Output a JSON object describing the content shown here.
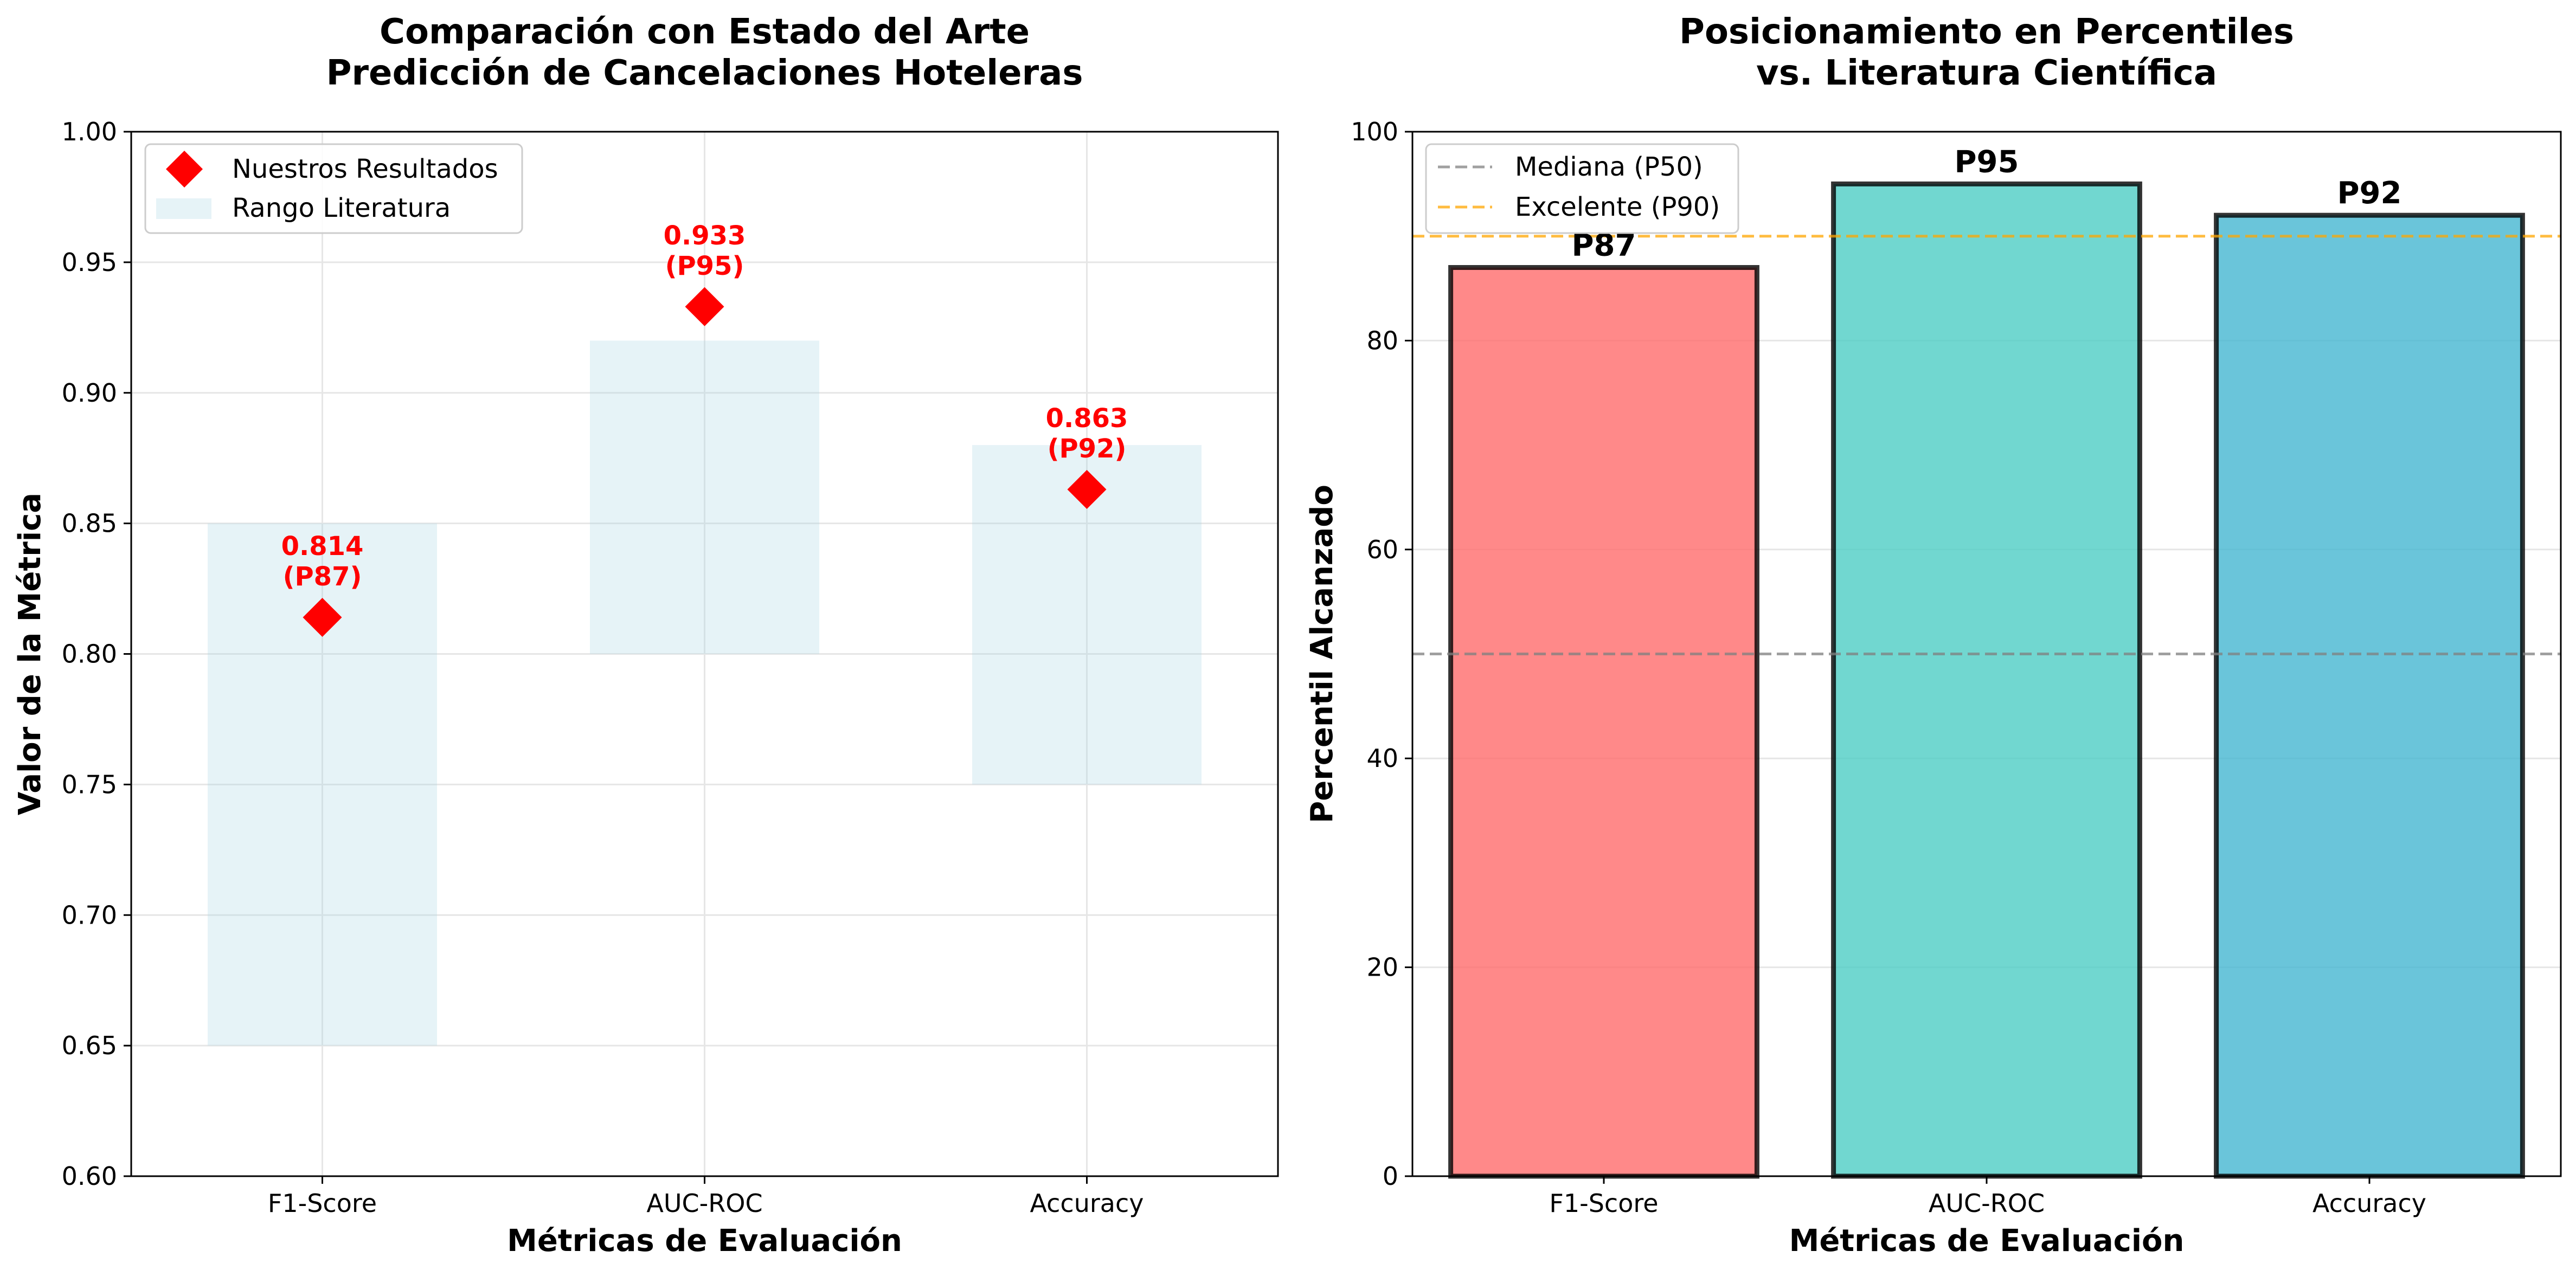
{
  "chart_data": [
    {
      "type": "scatter",
      "title": "Comparación con Estado del Arte\nPredicción de Cancelaciones Hoteleras",
      "xlabel": "Métricas de Evaluación",
      "ylabel": "Valor de la Métrica",
      "categories": [
        "F1-Score",
        "AUC-ROC",
        "Accuracy"
      ],
      "ylim": [
        0.6,
        1.0
      ],
      "yticks": [
        "0.60",
        "0.65",
        "0.70",
        "0.75",
        "0.80",
        "0.85",
        "0.90",
        "0.95",
        "1.00"
      ],
      "grid": true,
      "legend_position": "upper-left",
      "series": [
        {
          "name": "Nuestros Resultados",
          "kind": "diamond-marker",
          "color": "#ff0000",
          "values": [
            0.814,
            0.933,
            0.863
          ],
          "labels": [
            "0.814\n(P87)",
            "0.933\n(P95)",
            "0.863\n(P92)"
          ]
        },
        {
          "name": "Rango Literatura",
          "kind": "range-band",
          "color": "#add8e6",
          "ranges": [
            [
              0.65,
              0.85
            ],
            [
              0.8,
              0.92
            ],
            [
              0.75,
              0.88
            ]
          ]
        }
      ]
    },
    {
      "type": "bar",
      "title": "Posicionamiento en Percentiles\nvs. Literatura Científica",
      "xlabel": "Métricas de Evaluación",
      "ylabel": "Percentil Alcanzado",
      "categories": [
        "F1-Score",
        "AUC-ROC",
        "Accuracy"
      ],
      "ylim": [
        0,
        100
      ],
      "yticks": [
        "0",
        "20",
        "40",
        "60",
        "80",
        "100"
      ],
      "grid": true,
      "legend_position": "upper-left",
      "values": [
        87,
        95,
        92
      ],
      "bar_labels": [
        "P87",
        "P95",
        "P92"
      ],
      "bar_colors": [
        "#ff6b6b",
        "#4ecdc4",
        "#45b7d1"
      ],
      "reference_lines": [
        {
          "name": "Mediana (P50)",
          "value": 50,
          "color": "#808080"
        },
        {
          "name": "Excelente (P90)",
          "value": 90,
          "color": "#ffa500"
        }
      ]
    }
  ]
}
